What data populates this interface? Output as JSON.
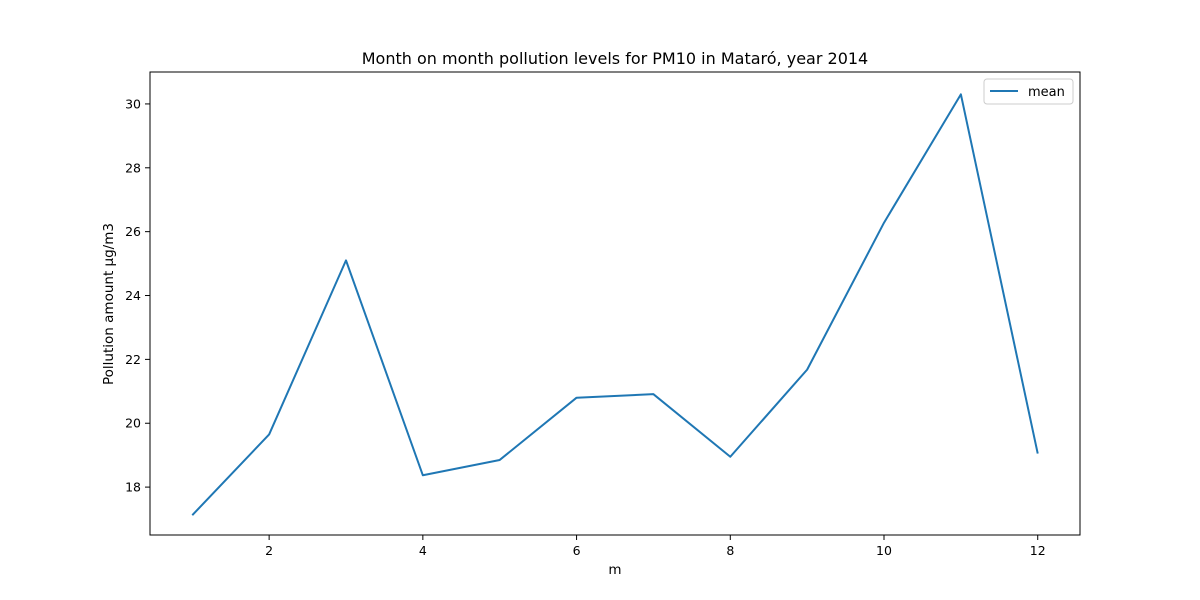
{
  "chart_data": {
    "type": "line",
    "title": "Month on month pollution levels for PM10 in Mataró, year 2014",
    "xlabel": "m",
    "ylabel": "Pollution amount μg/m3",
    "x": [
      1,
      2,
      3,
      4,
      5,
      6,
      7,
      8,
      9,
      10,
      11,
      12
    ],
    "series": [
      {
        "name": "mean",
        "color": "#1f77b4",
        "values": [
          17.12,
          19.65,
          25.1,
          18.37,
          18.85,
          20.8,
          20.91,
          18.95,
          21.68,
          26.28,
          30.3,
          19.05
        ]
      }
    ],
    "xlim": [
      0.45,
      12.55
    ],
    "ylim": [
      16.5,
      31.0
    ],
    "xticks": [
      2,
      4,
      6,
      8,
      10,
      12
    ],
    "yticks": [
      18,
      20,
      22,
      24,
      26,
      28,
      30
    ],
    "grid": false,
    "legend_position": "top-right"
  }
}
